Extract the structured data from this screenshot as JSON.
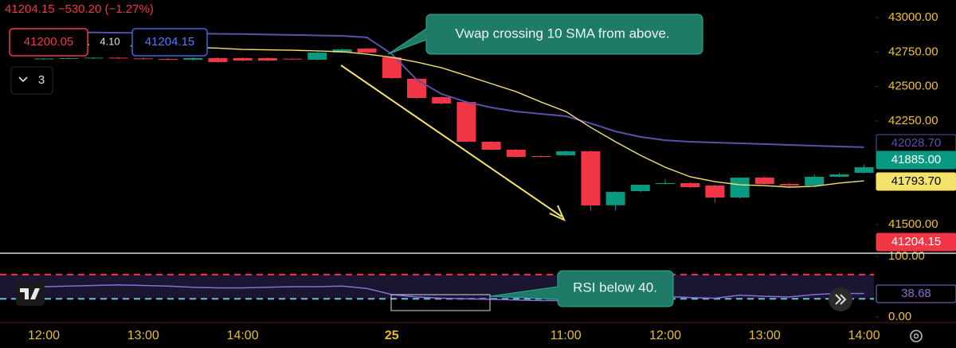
{
  "ui": {
    "quote": "41204.15  −530.20 (−1.27%)",
    "sell": "41200.05",
    "spread": "4.10",
    "buy": "41204.15",
    "indicators_count": "3"
  },
  "chart_data": [
    {
      "type": "candlestick",
      "categories": [
        "12:00",
        null,
        null,
        null,
        "13:00",
        null,
        null,
        null,
        "14:00",
        null,
        null,
        null,
        null,
        null,
        "25",
        null,
        null,
        null,
        null,
        null,
        null,
        "11:00",
        null,
        null,
        null,
        "12:00",
        null,
        null,
        null,
        "13:00",
        null,
        null,
        null,
        "14:00"
      ],
      "open": [
        42700,
        42703,
        42706,
        42709,
        42704,
        42700,
        42694,
        42706,
        42706,
        42706,
        42702,
        42694,
        42746,
        42775,
        42712,
        42556,
        42423,
        42388,
        42100,
        42042,
        41996,
        42002,
        42031,
        41640,
        41742,
        41794,
        41800,
        41783,
        41696,
        41840,
        41794,
        41783,
        41846,
        41875
      ],
      "high": [
        42706,
        42710,
        42712,
        42714,
        42710,
        42706,
        42712,
        42712,
        42710,
        42712,
        42706,
        42752,
        42775,
        42778,
        42718,
        42560,
        42430,
        42395,
        42104,
        42048,
        42000,
        42036,
        42036,
        41740,
        41790,
        41830,
        41808,
        41790,
        41842,
        41848,
        41800,
        41863,
        41875,
        41935
      ],
      "low": [
        42694,
        42698,
        42700,
        42700,
        42696,
        42690,
        42688,
        42674,
        42684,
        42684,
        42696,
        42690,
        42742,
        42742,
        42555,
        42410,
        42370,
        42095,
        42040,
        41985,
        41985,
        41998,
        41600,
        41600,
        41735,
        41790,
        41765,
        41660,
        41690,
        41790,
        41775,
        41770,
        41843,
        41870
      ],
      "close": [
        42703,
        42706,
        42709,
        42704,
        42700,
        42694,
        42706,
        42677,
        42688,
        42688,
        42700,
        42746,
        42769,
        42746,
        42561,
        42417,
        42377,
        42100,
        42042,
        41990,
        41990,
        42031,
        41638,
        41736,
        41788,
        41800,
        41771,
        41696,
        41840,
        41794,
        41783,
        41846,
        41863,
        41915
      ],
      "up_color": "#089981",
      "down_color": "#f23645",
      "lines": [
        {
          "color": "#5e4fa8",
          "values": [
            42896,
            42894,
            42892,
            42890,
            42888,
            42886,
            42884,
            42882,
            42880,
            42877,
            42874,
            42870,
            42867,
            42856,
            42735,
            42550,
            42446,
            42388,
            42348,
            42319,
            42302,
            42285,
            42233,
            42175,
            42135,
            42111,
            42100,
            42094,
            42088,
            42083,
            42077,
            42071,
            42065,
            42060
          ]
        },
        {
          "color": "#f3e36a",
          "values": [
            42810,
            42806,
            42802,
            42798,
            42792,
            42788,
            42784,
            42778,
            42769,
            42766,
            42763,
            42758,
            42752,
            42735,
            42712,
            42677,
            42636,
            42579,
            42521,
            42463,
            42388,
            42319,
            42204,
            42100,
            42002,
            41915,
            41846,
            41811,
            41788,
            41782,
            41771,
            41777,
            41800,
            41817
          ]
        }
      ],
      "ylim": [
        41292,
        43127
      ],
      "yticks": [
        {
          "value": 43000,
          "label": "43000.00"
        },
        {
          "value": 42750,
          "label": "42750.00"
        },
        {
          "value": 42500,
          "label": "42500.00"
        },
        {
          "value": 42250,
          "label": "42250.00"
        },
        {
          "value": 41500,
          "label": "41500.00"
        }
      ],
      "price_tags": [
        {
          "label": "42028.70",
          "color": "#5e4fa8"
        },
        {
          "label": "41885.00",
          "color": "#089981"
        },
        {
          "label": "41793.70",
          "color": "#f3e36a"
        },
        {
          "label": "41204.15",
          "color": "#f23645"
        }
      ],
      "annotations": [
        "Vwap crossing 10 SMA from above."
      ]
    },
    {
      "type": "line",
      "values": [
        50,
        51,
        52,
        53,
        52,
        51,
        49,
        48,
        48,
        49,
        50,
        50,
        51,
        47,
        37,
        33,
        31,
        30,
        29,
        28,
        27,
        27,
        28,
        30,
        32,
        34,
        32,
        31,
        36,
        34,
        33,
        37,
        39,
        38.68
      ],
      "color": "#8e6ad8",
      "ylim": [
        0,
        100
      ],
      "yticks": [
        {
          "value": 100,
          "label": "100.00"
        },
        {
          "value": 0,
          "label": "0.00"
        }
      ],
      "levels": [
        70,
        30
      ],
      "level_colors": [
        "#f23645",
        "#5fc4e0"
      ],
      "last_label": "38.68",
      "annotations": [
        "RSI below 40."
      ]
    }
  ]
}
